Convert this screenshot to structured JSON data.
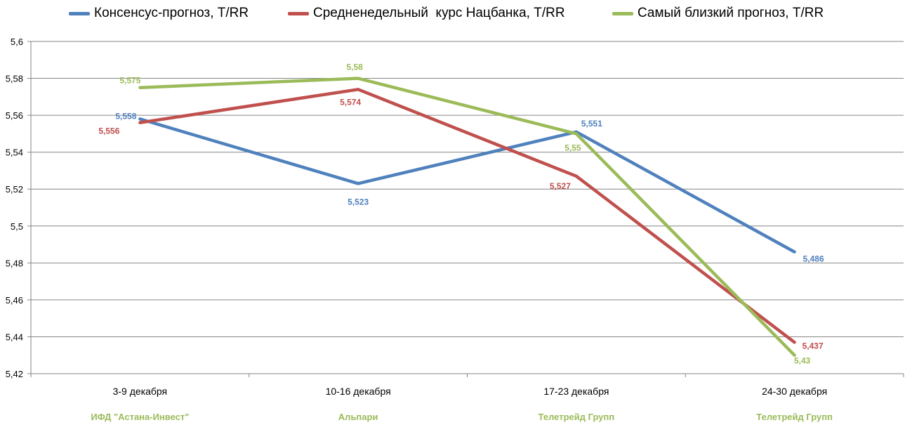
{
  "chart_data": {
    "type": "line",
    "categories": [
      "3-9 декабря",
      "10-16 декабря",
      "17-23 декабря",
      "24-30 декабря"
    ],
    "sub_labels": [
      "ИФД \"Астана-Инвест\"",
      "Альпари",
      "Телетрейд Групп",
      "Телетрейд Групп"
    ],
    "sub_label_color": "#9bbb59",
    "series": [
      {
        "name": "Консенсус-прогноз, T/RR",
        "color": "#4f81bd",
        "values": [
          5.558,
          5.523,
          5.551,
          5.486
        ],
        "labels": [
          "5,558",
          "5,523",
          "5,551",
          "5,486"
        ]
      },
      {
        "name": "Средненедельный  курс Нацбанка, T/RR",
        "color": "#c0504d",
        "values": [
          5.556,
          5.574,
          5.527,
          5.437
        ],
        "labels": [
          "5,556",
          "5,574",
          "5,527",
          "5,437"
        ]
      },
      {
        "name": "Самый близкий прогноз, T/RR",
        "color": "#9bbb59",
        "values": [
          5.575,
          5.58,
          5.55,
          5.43
        ],
        "labels": [
          "5,575",
          "5,58",
          "5,55",
          "5,43"
        ]
      }
    ],
    "yticks": [
      "5,42",
      "5,44",
      "5,46",
      "5,48",
      "5,5",
      "5,52",
      "5,54",
      "5,56",
      "5,58",
      "5,6"
    ],
    "ylim": [
      5.42,
      5.6
    ],
    "grid": true,
    "legend": "top"
  }
}
